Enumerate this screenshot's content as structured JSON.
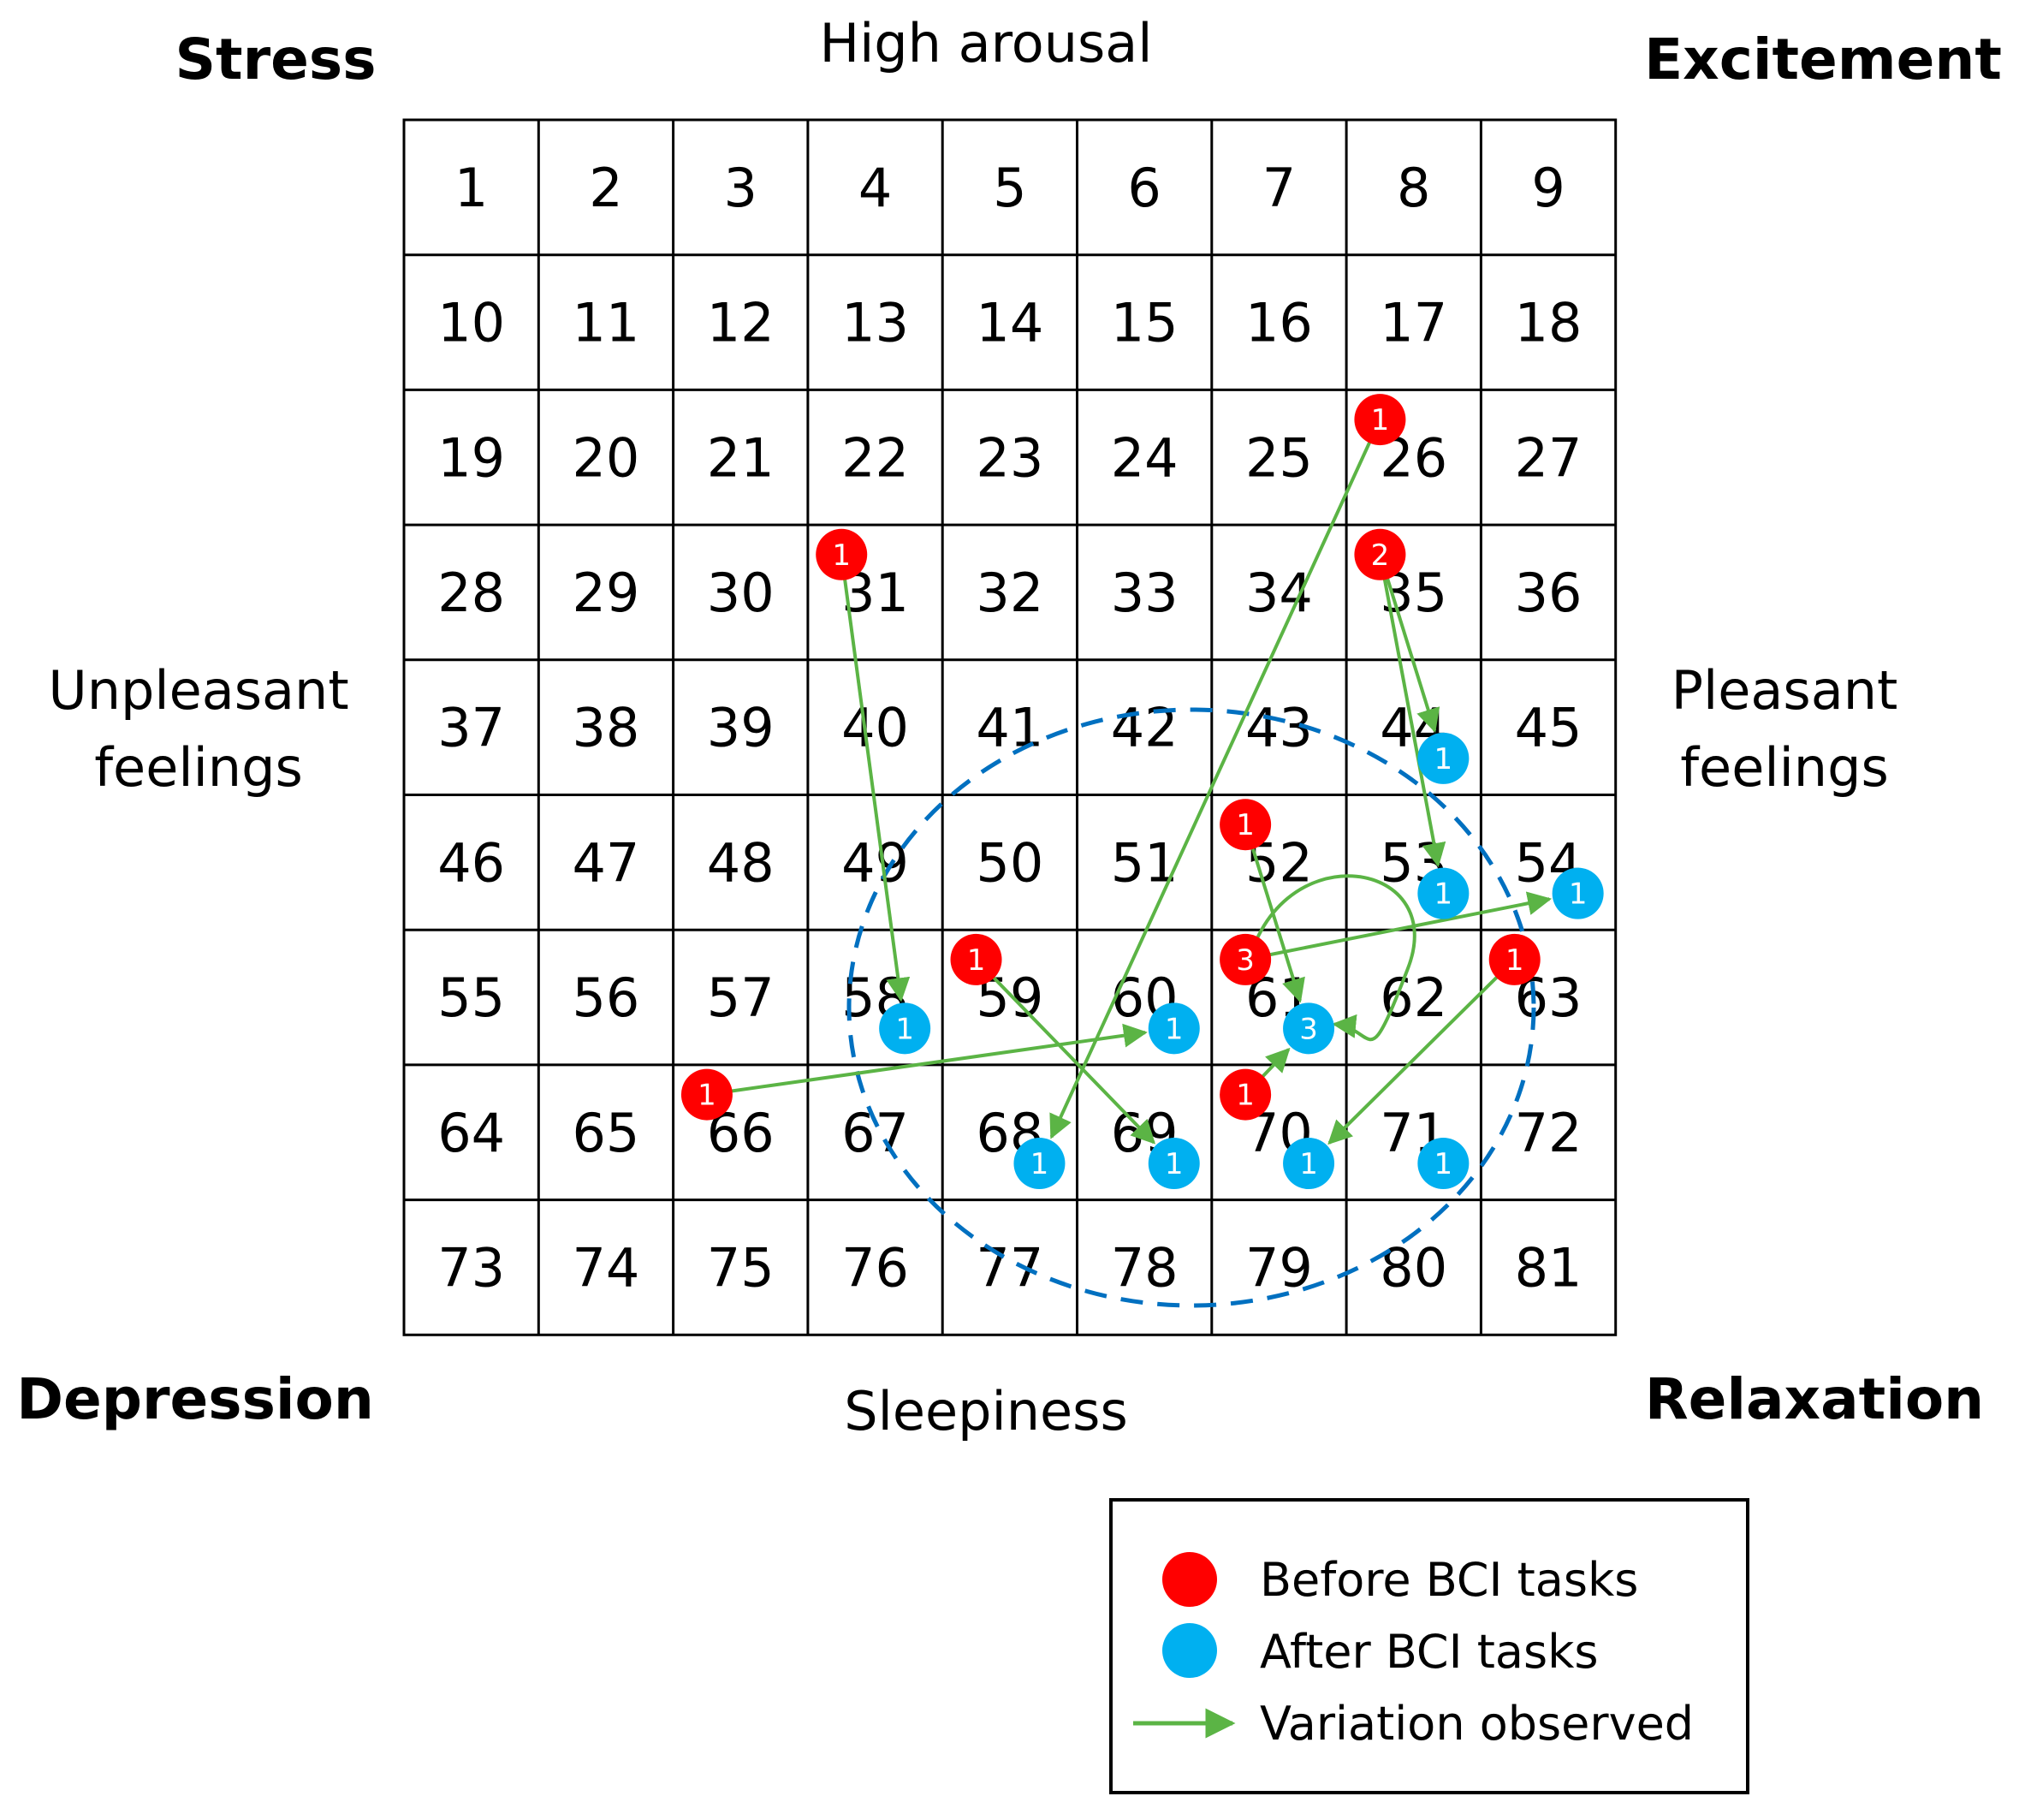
{
  "corners": {
    "top_left": "Stress",
    "top_right": "Excitement",
    "bottom_left": "Depression",
    "bottom_right": "Relaxation"
  },
  "axes": {
    "top": "High arousal",
    "bottom": "Sleepiness",
    "left": [
      "Unpleasant",
      "feelings"
    ],
    "right": [
      "Pleasant",
      "feelings"
    ]
  },
  "grid": {
    "rows": 9,
    "cols": 9,
    "cells": [
      "1",
      "2",
      "3",
      "4",
      "5",
      "6",
      "7",
      "8",
      "9",
      "10",
      "11",
      "12",
      "13",
      "14",
      "15",
      "16",
      "17",
      "18",
      "19",
      "20",
      "21",
      "22",
      "23",
      "24",
      "25",
      "26",
      "27",
      "28",
      "29",
      "30",
      "31",
      "32",
      "33",
      "34",
      "35",
      "36",
      "37",
      "38",
      "39",
      "40",
      "41",
      "42",
      "43",
      "44",
      "45",
      "46",
      "47",
      "48",
      "49",
      "50",
      "51",
      "52",
      "53",
      "54",
      "55",
      "56",
      "57",
      "58",
      "59",
      "60",
      "61",
      "62",
      "63",
      "64",
      "65",
      "66",
      "67",
      "68",
      "69",
      "70",
      "71",
      "72",
      "73",
      "74",
      "75",
      "76",
      "77",
      "78",
      "79",
      "80",
      "81"
    ]
  },
  "colors": {
    "before": "#ff0000",
    "after": "#00b0f0",
    "arrow": "#5bb445",
    "ellipse": "#0070c0",
    "grid": "#000000"
  },
  "before_points": [
    {
      "cell": 26,
      "count": "1"
    },
    {
      "cell": 31,
      "count": "1"
    },
    {
      "cell": 35,
      "count": "2"
    },
    {
      "cell": 52,
      "count": "1"
    },
    {
      "cell": 59,
      "count": "1"
    },
    {
      "cell": 61,
      "count": "3"
    },
    {
      "cell": 63,
      "count": "1"
    },
    {
      "cell": 66,
      "count": "1"
    },
    {
      "cell": 70,
      "count": "1"
    }
  ],
  "after_points": [
    {
      "cell": 44,
      "count": "1"
    },
    {
      "cell": 53,
      "count": "1"
    },
    {
      "cell": 54,
      "count": "1"
    },
    {
      "cell": 58,
      "count": "1"
    },
    {
      "cell": 60,
      "count": "1"
    },
    {
      "cell": 61,
      "count": "3"
    },
    {
      "cell": 68,
      "count": "1"
    },
    {
      "cell": 69,
      "count": "1"
    },
    {
      "cell": 70,
      "count": "1"
    },
    {
      "cell": 71,
      "count": "1"
    }
  ],
  "transitions": [
    {
      "from": 26,
      "to": 68
    },
    {
      "from": 31,
      "to": 58
    },
    {
      "from": 35,
      "to": 44
    },
    {
      "from": 35,
      "to": 53
    },
    {
      "from": 52,
      "to": 61
    },
    {
      "from": 59,
      "to": 69
    },
    {
      "from": 61,
      "to": 54
    },
    {
      "from": 61,
      "to": 61
    },
    {
      "from": 63,
      "to": 70
    },
    {
      "from": 66,
      "to": 60
    },
    {
      "from": 70,
      "to": 61
    }
  ],
  "legend": {
    "before": "Before BCI tasks",
    "after": "After BCI tasks",
    "variation": "Variation observed"
  }
}
